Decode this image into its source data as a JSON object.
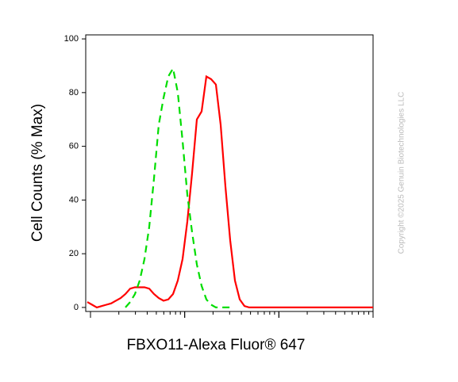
{
  "chart_data": {
    "type": "line",
    "y_label": "Cell Counts (% Max)",
    "x_label": "FBXO11-Alexa Fluor® 647",
    "watermark": "Copyright ©2025 Genuin Biotechnologies LLC",
    "x_scale": "log",
    "categories": [
      null,
      null,
      null,
      null,
      null,
      null,
      null,
      null,
      null,
      null,
      null,
      null,
      null,
      null,
      null,
      null,
      null,
      null,
      null,
      null,
      null,
      null,
      null,
      null,
      null,
      null,
      null,
      null,
      null,
      null,
      null,
      null,
      null,
      null,
      null,
      null,
      null,
      null,
      null,
      null,
      null,
      null,
      null,
      null,
      null,
      null,
      null,
      null,
      null,
      null,
      null,
      null,
      null,
      null,
      null,
      null,
      null,
      null,
      null,
      null,
      null
    ],
    "ylim": [
      -1.5,
      101.5
    ],
    "yticks": [
      0,
      20,
      40,
      60,
      80,
      100
    ],
    "series": [
      {
        "color": "#ff0000",
        "dash": false,
        "values": [
          2,
          1,
          0,
          0.5,
          1,
          1.5,
          2.5,
          3.5,
          5,
          7,
          7.5,
          7.5,
          7.5,
          7,
          5,
          3.5,
          2.5,
          3,
          5,
          10,
          18,
          32,
          50,
          70,
          73,
          86,
          85,
          83,
          68,
          45,
          25,
          10,
          3,
          0.5,
          0,
          0,
          0,
          0,
          0,
          0,
          0,
          0,
          0,
          0,
          0,
          0,
          0,
          0,
          0,
          0,
          0,
          0,
          0,
          0,
          0,
          0,
          0,
          0,
          0,
          0,
          0
        ]
      },
      {
        "color": "#00dd00",
        "dash": true,
        "values": [
          null,
          null,
          null,
          null,
          null,
          null,
          null,
          null,
          0,
          2,
          5,
          10,
          18,
          30,
          48,
          68,
          78,
          86,
          89,
          80,
          62,
          42,
          28,
          16,
          8,
          3,
          1,
          0,
          0,
          0,
          0,
          null,
          null,
          null,
          null,
          null,
          null,
          null,
          null,
          null,
          null,
          null,
          null,
          null,
          null,
          null,
          null,
          null,
          null,
          null,
          null,
          null,
          null,
          null,
          null,
          null,
          null,
          null,
          null,
          null,
          null
        ]
      }
    ]
  }
}
